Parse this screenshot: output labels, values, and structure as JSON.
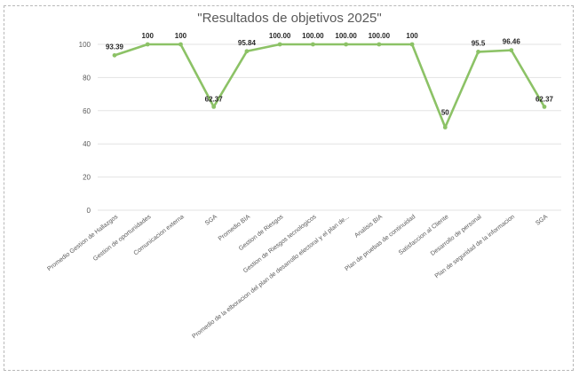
{
  "chart_data": {
    "type": "line",
    "title": "\"Resultados de objetivos 2025\"",
    "categories": [
      "Promedio Gestion de Hallazgos",
      "Gestion de oportunidades",
      "Comunicacion externa",
      "SGA",
      "Promedio BIA",
      "Gestion de Riesgos",
      "Gestion de Riesgos tecnologicos",
      "Promedio de la elboracion del plan de desarrollo electoral y el plan de...",
      "Analisis BIA",
      "Plan de pruebas de continuidad",
      "Satisfaccion al Cliente",
      "Desarrollo de personal",
      "Plan de seguridad de la informacion",
      "SGA"
    ],
    "series": [
      {
        "values": [
          93.39,
          100,
          100,
          62.37,
          95.84,
          100,
          100,
          100,
          100,
          100,
          50,
          95.5,
          96.46,
          62.37
        ],
        "data_labels": [
          "93.39",
          "100",
          "100",
          "62.37",
          "95.84",
          "100.00",
          "100.00",
          "100.00",
          "100.00",
          "100",
          "50",
          "95.5",
          "96.46",
          "62.37"
        ],
        "color": "#8cc266"
      }
    ],
    "ylim": [
      0,
      100
    ],
    "yticks": [
      "0",
      "20",
      "40",
      "60",
      "80",
      "100"
    ],
    "grid": true,
    "legend": "none"
  }
}
